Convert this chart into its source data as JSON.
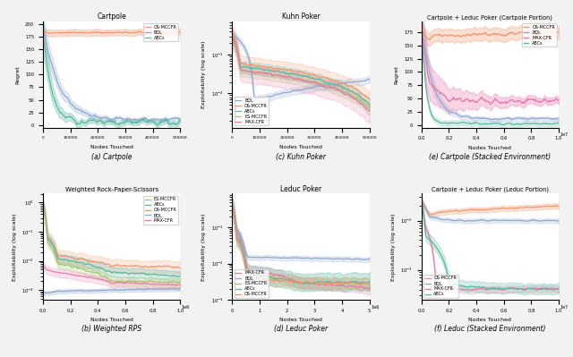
{
  "subplots_order": [
    "a_cartpole",
    "c_kuhn",
    "e_cartpole_stacked",
    "b_wrps",
    "d_leduc",
    "f_leduc_stacked"
  ],
  "background": "#f0f0f0",
  "subplot_bg": "white",
  "captions": {
    "a_cartpole": "(a) Cartpole",
    "c_kuhn": "(c) Kuhn Poker",
    "e_cartpole_stacked": "(e) Cartpole (Stacked Environment)",
    "b_wrps": "(b) Weighted RPS",
    "d_leduc": "(d) Leduc Poker",
    "f_leduc_stacked": "(f) Leduc (Stacked Environment)"
  },
  "colors": {
    "OS-MCCFR": "#f4956a",
    "BQL": "#8fa8d0",
    "ABCs": "#5ab8a0",
    "ES-MCCFR": "#a8c46e",
    "MAX-CFR": "#e87aaa"
  }
}
